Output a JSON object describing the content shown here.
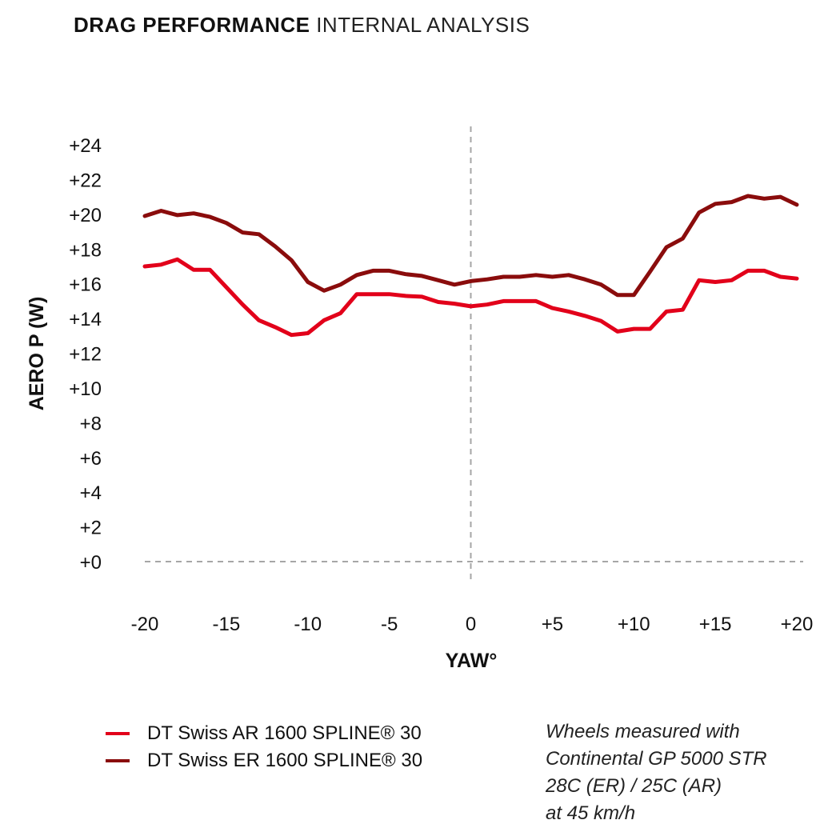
{
  "header": {
    "title_bold": "DRAG PERFORMANCE",
    "title_light": "INTERNAL ANALYSIS"
  },
  "chart_data": {
    "type": "line",
    "title": "DRAG PERFORMANCE INTERNAL ANALYSIS",
    "xlabel": "YAW°",
    "ylabel": "AERO P (W)",
    "xlim": [
      -20,
      20
    ],
    "ylim": [
      0,
      24
    ],
    "x_ticks": [
      -20,
      -15,
      -10,
      -5,
      0,
      5,
      10,
      15,
      20
    ],
    "x_tick_labels": [
      "-20",
      "-15",
      "-10",
      "-5",
      "0",
      "+5",
      "+10",
      "+15",
      "+20"
    ],
    "y_ticks": [
      0,
      2,
      4,
      6,
      8,
      10,
      12,
      14,
      16,
      18,
      20,
      22,
      24
    ],
    "y_tick_labels": [
      "+0",
      "+2",
      "+4",
      "+6",
      "+8",
      "+10",
      "+12",
      "+14",
      "+16",
      "+18",
      "+20",
      "+22",
      "+24"
    ],
    "reference_lines": {
      "x": 0,
      "y": 0,
      "style": "dashed"
    },
    "x": [
      -20,
      -19,
      -18,
      -17,
      -16,
      -15,
      -14,
      -13,
      -12,
      -11,
      -10,
      -9,
      -8,
      -7,
      -6,
      -5,
      -4,
      -3,
      -2,
      -1,
      0,
      1,
      2,
      3,
      4,
      5,
      6,
      7,
      8,
      9,
      10,
      11,
      12,
      13,
      14,
      15,
      16,
      17,
      18,
      19,
      20
    ],
    "series": [
      {
        "name": "DT Swiss AR 1600 SPLINE® 30",
        "color": "#e2001a",
        "values": [
          17.0,
          17.1,
          17.4,
          16.8,
          16.8,
          15.8,
          14.8,
          13.9,
          13.5,
          13.05,
          13.15,
          13.9,
          14.3,
          15.4,
          15.4,
          15.4,
          15.3,
          15.25,
          14.95,
          14.85,
          14.7,
          14.8,
          15.0,
          15.0,
          15.0,
          14.6,
          14.4,
          14.15,
          13.85,
          13.25,
          13.4,
          13.4,
          14.4,
          14.5,
          16.2,
          16.1,
          16.2,
          16.75,
          16.75,
          16.4,
          16.3
        ]
      },
      {
        "name": "DT Swiss ER 1600 SPLINE® 30",
        "color": "#8a0c0c",
        "values": [
          19.9,
          20.2,
          19.95,
          20.05,
          19.85,
          19.5,
          18.95,
          18.85,
          18.15,
          17.35,
          16.1,
          15.6,
          15.95,
          16.5,
          16.75,
          16.75,
          16.55,
          16.45,
          16.2,
          15.95,
          16.15,
          16.25,
          16.4,
          16.4,
          16.5,
          16.4,
          16.5,
          16.25,
          15.95,
          15.35,
          15.35,
          16.7,
          18.1,
          18.6,
          20.1,
          20.6,
          20.7,
          21.05,
          20.9,
          21.0,
          20.55
        ]
      }
    ],
    "legend_position": "bottom-left"
  },
  "legend": {
    "items": [
      {
        "label": "DT Swiss AR 1600 SPLINE® 30",
        "color": "#e2001a"
      },
      {
        "label": "DT Swiss ER 1600 SPLINE® 30",
        "color": "#8a0c0c"
      }
    ]
  },
  "note": {
    "lines": [
      "Wheels measured with",
      "Continental GP 5000 STR",
      "28C (ER) / 25C (AR)",
      "at 45 km/h"
    ]
  }
}
